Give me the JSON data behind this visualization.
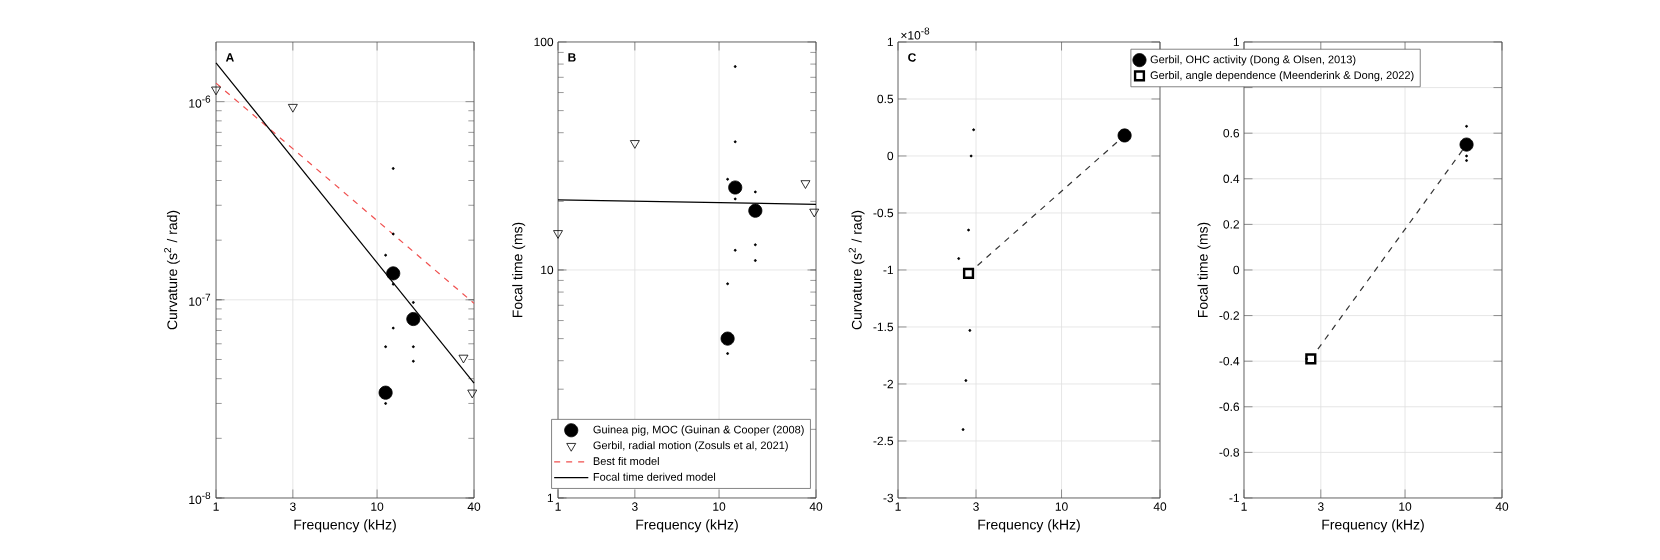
{
  "chart_data": [
    {
      "type": "scatter",
      "annotations": [
        "A"
      ],
      "xlabel": "Frequency (kHz)",
      "ylabel": "Curvature (s$^{2}$ / rad)",
      "log": "xy",
      "grid": true,
      "xlim": [
        1,
        40
      ],
      "xticks": [
        1,
        3,
        10,
        40
      ],
      "ylim": [
        1e-08,
        2e-06
      ],
      "yticks": [
        {
          "value": 1e-08,
          "label": "10$^{-8}$"
        },
        {
          "value": 1e-07,
          "label": "10$^{-7}$"
        },
        {
          "value": 1e-06,
          "label": "10$^{-6}$"
        }
      ],
      "series": [
        {
          "type": "bubble",
          "marker": "circle",
          "color": "#000000",
          "x": [
            11.3,
            12.6,
            16.8
          ],
          "values": [
            3.4e-08,
            1.36e-07,
            8e-08
          ],
          "sizes": [
            1,
            1,
            1
          ]
        },
        {
          "type": "scatter",
          "marker": "triangle",
          "color": "#000000",
          "x": [
            1,
            3,
            34.4,
            39
          ],
          "values": [
            1.15e-06,
            9.4e-07,
            5.1e-08,
            3.4e-08
          ]
        },
        {
          "type": "scatter",
          "marker": "circle",
          "color": "#000000",
          "x": [
            12.6,
            12.6,
            11.3,
            12.6,
            16.8,
            12.6,
            11.3,
            16.8,
            16.8,
            11.3
          ],
          "values": [
            4.6e-07,
            2.15e-07,
            1.68e-07,
            1.2e-07,
            9.7e-08,
            7.2e-08,
            5.8e-08,
            5.8e-08,
            4.9e-08,
            3e-08
          ]
        },
        {
          "type": "line",
          "line_style": "dashed",
          "color": "#f0504f",
          "x": [
            1,
            40
          ],
          "values": [
            1.24e-06,
            9.6e-08
          ]
        },
        {
          "type": "line",
          "line_style": "solid",
          "color": "#000000",
          "x": [
            1,
            40
          ],
          "values": [
            1.57e-06,
            3.8e-08
          ]
        }
      ]
    },
    {
      "type": "scatter",
      "annotations": [
        "B"
      ],
      "xlabel": "Frequency (kHz)",
      "ylabel": "Focal time (ms)",
      "log": "xy",
      "grid": true,
      "legend": "bottom right",
      "xlim": [
        1,
        40
      ],
      "xticks": [
        1,
        3,
        10,
        40
      ],
      "ylim": [
        1,
        100
      ],
      "yticks": [
        1,
        10,
        100
      ],
      "series": [
        {
          "type": "bubble",
          "name": "Guinea pig, MOC (Guinan & Cooper (2008)",
          "marker": "circle",
          "color": "#000000",
          "x": [
            11.3,
            12.6,
            16.8
          ],
          "values": [
            5.0,
            23,
            18.2
          ],
          "sizes": [
            1,
            1,
            1
          ]
        },
        {
          "type": "scatter",
          "name": "Gerbil, radial motion (Zosuls et al, 2021)",
          "marker": "triangle",
          "color": "#000000",
          "x": [
            1,
            3,
            34.4,
            39
          ],
          "values": [
            14.5,
            36,
            24,
            18
          ]
        },
        {
          "type": "line",
          "name": "Best fit model",
          "line_style": "dashed",
          "color": "#f0504f"
        },
        {
          "type": "line",
          "name": "Focal time derived model",
          "line_style": "solid",
          "color": "#000000",
          "x": [
            1,
            40
          ],
          "values": [
            20.3,
            19.4
          ]
        },
        {
          "type": "scatter",
          "marker": "circle",
          "color": "#000000",
          "x": [
            12.6,
            12.6,
            11.3,
            12.6,
            16.8,
            16.8,
            12.6,
            16.8,
            11.3,
            11.3
          ],
          "values": [
            78,
            36.5,
            25,
            20.5,
            22,
            12.9,
            12.2,
            11,
            8.7,
            4.3
          ]
        }
      ]
    },
    {
      "type": "scatter",
      "annotations": [
        "C",
        "×10$^{-8}$"
      ],
      "xlabel": "Frequency (kHz)",
      "ylabel": "Curvature (s$^{2}$ / rad)",
      "log": "x",
      "grid": true,
      "xlim": [
        1,
        40
      ],
      "xticks": [
        1,
        3,
        10,
        40
      ],
      "ylim": [
        -3,
        1
      ],
      "yticks": [
        -3,
        -2.5,
        -2,
        -1.5,
        -1,
        -0.5,
        0,
        0.5,
        1
      ],
      "series": [
        {
          "type": "line",
          "line_style": "dashed",
          "color": "#333333",
          "x": [
            2.7,
            24.3
          ],
          "values": [
            -1.03,
            0.18
          ]
        },
        {
          "type": "scatter",
          "marker": "square",
          "color": "#000000",
          "x": [
            2.7
          ],
          "values": [
            -1.03
          ]
        },
        {
          "type": "bubble",
          "marker": "circle",
          "color": "#000000",
          "x": [
            24.3
          ],
          "values": [
            0.18
          ],
          "sizes": [
            1
          ]
        },
        {
          "type": "scatter",
          "marker": "circle",
          "color": "#000000",
          "x": [
            2.9,
            2.8,
            2.7,
            2.35,
            2.75,
            2.6,
            2.5
          ],
          "values": [
            0.23,
            0,
            -0.65,
            -0.9,
            -1.53,
            -1.97,
            -2.4
          ]
        }
      ]
    },
    {
      "type": "scatter",
      "xlabel": "Frequency (kHz)",
      "ylabel": "Focal time (ms)",
      "log": "x",
      "grid": true,
      "legend": "top left",
      "xlim": [
        1,
        40
      ],
      "xticks": [
        1,
        3,
        10,
        40
      ],
      "ylim": [
        -1,
        1
      ],
      "yticks": [
        -1,
        -0.8,
        -0.6,
        -0.4,
        -0.2,
        0,
        0.2,
        0.4,
        0.6,
        {
          "value": 0.8,
          "label": null
        },
        1
      ],
      "series": [
        {
          "type": "line",
          "line_style": "dashed",
          "color": "#333333",
          "x": [
            2.6,
            24.1
          ],
          "values": [
            -0.39,
            0.55
          ]
        },
        {
          "type": "bubble",
          "name": "Gerbil, OHC activity (Dong & Olsen, 2013)",
          "marker": "circle",
          "color": "#000000",
          "x": [
            24.1
          ],
          "values": [
            0.55
          ],
          "sizes": [
            1
          ]
        },
        {
          "type": "scatter",
          "name": "Gerbil, angle dependence (Meenderink & Dong, 2022)",
          "marker": "square",
          "color": "#000000",
          "x": [
            2.6
          ],
          "values": [
            -0.39
          ]
        },
        {
          "type": "scatter",
          "marker": "circle",
          "color": "#000000",
          "x": [
            24.1,
            24.1,
            24.1,
            2.45
          ],
          "values": [
            0.63,
            0.5,
            0.48,
            -0.39
          ]
        }
      ]
    }
  ]
}
